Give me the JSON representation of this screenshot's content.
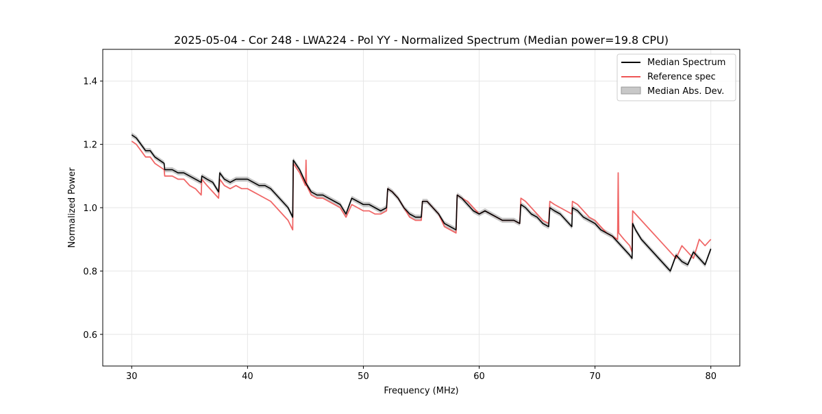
{
  "chart_data": {
    "type": "line",
    "title": "2025-05-04 - Cor 248 - LWA224 - Pol YY - Normalized Spectrum (Median power=19.8 CPU)",
    "xlabel": "Frequency (MHz)",
    "ylabel": "Normalized Power",
    "xlim": [
      27.5,
      82.5
    ],
    "ylim": [
      0.5,
      1.5
    ],
    "xticks": [
      30,
      40,
      50,
      60,
      70,
      80
    ],
    "yticks": [
      0.6,
      0.8,
      1.0,
      1.2,
      1.4
    ],
    "xtick_labels": [
      "30",
      "40",
      "50",
      "60",
      "70",
      "80"
    ],
    "ytick_labels": [
      "0.6",
      "0.8",
      "1.0",
      "1.2",
      "1.4"
    ],
    "grid": true,
    "legend_position": "top-right",
    "series": [
      {
        "name": "Median Spectrum",
        "color": "#000000",
        "x": [
          30.0,
          30.4,
          30.8,
          31.2,
          31.6,
          32.0,
          32.4,
          32.8,
          32.85,
          33.5,
          34.0,
          34.5,
          35.0,
          35.5,
          36.0,
          36.05,
          36.5,
          37.0,
          37.5,
          37.6,
          38.0,
          38.5,
          39.0,
          39.5,
          40.0,
          40.5,
          41.0,
          41.5,
          42.0,
          42.5,
          43.0,
          43.5,
          43.9,
          43.95,
          44.5,
          45.0,
          45.5,
          46.0,
          46.5,
          47.0,
          47.5,
          48.0,
          48.5,
          49.0,
          49.5,
          50.0,
          50.5,
          51.0,
          51.5,
          52.0,
          52.1,
          52.5,
          53.0,
          53.5,
          54.0,
          54.5,
          55.0,
          55.1,
          55.5,
          56.0,
          56.5,
          57.0,
          57.5,
          58.0,
          58.1,
          58.5,
          59.0,
          59.5,
          60.0,
          60.5,
          61.0,
          61.5,
          62.0,
          62.5,
          63.0,
          63.5,
          63.6,
          64.0,
          64.5,
          65.0,
          65.5,
          66.0,
          66.1,
          66.5,
          67.0,
          67.5,
          68.0,
          68.05,
          68.5,
          69.0,
          69.5,
          70.0,
          70.5,
          71.0,
          71.5,
          72.0,
          72.5,
          73.0,
          73.2,
          73.25,
          73.5,
          74.0,
          74.5,
          75.0,
          75.5,
          76.0,
          76.5,
          77.0,
          77.5,
          78.0,
          78.5,
          79.0,
          79.5,
          80.0
        ],
        "y": [
          1.23,
          1.22,
          1.2,
          1.18,
          1.18,
          1.16,
          1.15,
          1.14,
          1.12,
          1.12,
          1.11,
          1.11,
          1.1,
          1.09,
          1.08,
          1.1,
          1.09,
          1.08,
          1.05,
          1.11,
          1.09,
          1.08,
          1.09,
          1.09,
          1.09,
          1.08,
          1.07,
          1.07,
          1.06,
          1.04,
          1.02,
          1.0,
          0.97,
          1.15,
          1.12,
          1.08,
          1.05,
          1.04,
          1.04,
          1.03,
          1.02,
          1.01,
          0.98,
          1.03,
          1.02,
          1.01,
          1.01,
          1.0,
          0.99,
          1.0,
          1.06,
          1.05,
          1.03,
          1.0,
          0.98,
          0.97,
          0.97,
          1.02,
          1.02,
          1.0,
          0.98,
          0.95,
          0.94,
          0.93,
          1.04,
          1.03,
          1.01,
          0.99,
          0.98,
          0.99,
          0.98,
          0.97,
          0.96,
          0.96,
          0.96,
          0.95,
          1.01,
          1.0,
          0.98,
          0.97,
          0.95,
          0.94,
          1.0,
          0.99,
          0.98,
          0.96,
          0.94,
          1.0,
          0.99,
          0.97,
          0.96,
          0.95,
          0.93,
          0.92,
          0.91,
          0.89,
          0.87,
          0.85,
          0.84,
          0.95,
          0.93,
          0.9,
          0.88,
          0.86,
          0.84,
          0.82,
          0.8,
          0.85,
          0.83,
          0.82,
          0.86,
          0.84,
          0.82,
          0.87
        ]
      },
      {
        "name": "Reference spec",
        "color": "#ee5555",
        "x": [
          30.0,
          30.4,
          30.8,
          31.2,
          31.6,
          32.0,
          32.4,
          32.8,
          32.85,
          33.5,
          34.0,
          34.5,
          35.0,
          35.5,
          36.0,
          36.05,
          36.5,
          37.0,
          37.5,
          37.6,
          38.0,
          38.5,
          39.0,
          39.5,
          40.0,
          40.5,
          41.0,
          41.5,
          42.0,
          42.5,
          43.0,
          43.5,
          43.9,
          43.95,
          44.5,
          45.0,
          45.05,
          45.1,
          45.5,
          46.0,
          46.5,
          47.0,
          47.5,
          48.0,
          48.5,
          49.0,
          49.5,
          50.0,
          50.5,
          51.0,
          51.5,
          52.0,
          52.1,
          52.5,
          53.0,
          53.5,
          54.0,
          54.5,
          55.0,
          55.1,
          55.5,
          56.0,
          56.5,
          57.0,
          57.5,
          58.0,
          58.1,
          58.5,
          59.0,
          59.5,
          60.0,
          60.5,
          61.0,
          61.5,
          62.0,
          62.5,
          63.0,
          63.5,
          63.6,
          64.0,
          64.5,
          65.0,
          65.5,
          66.0,
          66.1,
          66.5,
          67.0,
          67.5,
          68.0,
          68.05,
          68.5,
          69.0,
          69.5,
          70.0,
          70.5,
          71.0,
          71.5,
          71.95,
          72.0,
          72.05,
          72.5,
          73.0,
          73.2,
          73.25,
          73.5,
          74.0,
          74.5,
          75.0,
          75.5,
          76.0,
          76.5,
          77.0,
          77.5,
          78.0,
          78.5,
          79.0,
          79.5,
          80.0
        ],
        "y": [
          1.21,
          1.2,
          1.18,
          1.16,
          1.16,
          1.14,
          1.13,
          1.12,
          1.1,
          1.1,
          1.09,
          1.09,
          1.07,
          1.06,
          1.04,
          1.09,
          1.07,
          1.05,
          1.03,
          1.09,
          1.07,
          1.06,
          1.07,
          1.06,
          1.06,
          1.05,
          1.04,
          1.03,
          1.02,
          1.0,
          0.98,
          0.96,
          0.93,
          1.14,
          1.11,
          1.07,
          1.15,
          1.07,
          1.04,
          1.03,
          1.03,
          1.02,
          1.01,
          1.0,
          0.97,
          1.01,
          1.0,
          0.99,
          0.99,
          0.98,
          0.98,
          0.99,
          1.06,
          1.05,
          1.03,
          1.0,
          0.97,
          0.96,
          0.96,
          1.02,
          1.02,
          1.0,
          0.98,
          0.94,
          0.93,
          0.92,
          1.04,
          1.03,
          1.02,
          1.0,
          0.98,
          0.99,
          0.98,
          0.97,
          0.96,
          0.96,
          0.96,
          0.95,
          1.03,
          1.02,
          1.0,
          0.98,
          0.96,
          0.95,
          1.02,
          1.01,
          1.0,
          0.99,
          0.98,
          1.02,
          1.01,
          0.99,
          0.97,
          0.96,
          0.94,
          0.92,
          0.91,
          0.9,
          1.11,
          0.92,
          0.9,
          0.88,
          0.86,
          0.99,
          0.98,
          0.96,
          0.94,
          0.92,
          0.9,
          0.88,
          0.86,
          0.84,
          0.88,
          0.86,
          0.84,
          0.9,
          0.88,
          0.9
        ]
      }
    ],
    "mad_band": {
      "name": "Median Abs. Dev.",
      "color": "#c8c8c8",
      "half_width": 0.008
    }
  }
}
